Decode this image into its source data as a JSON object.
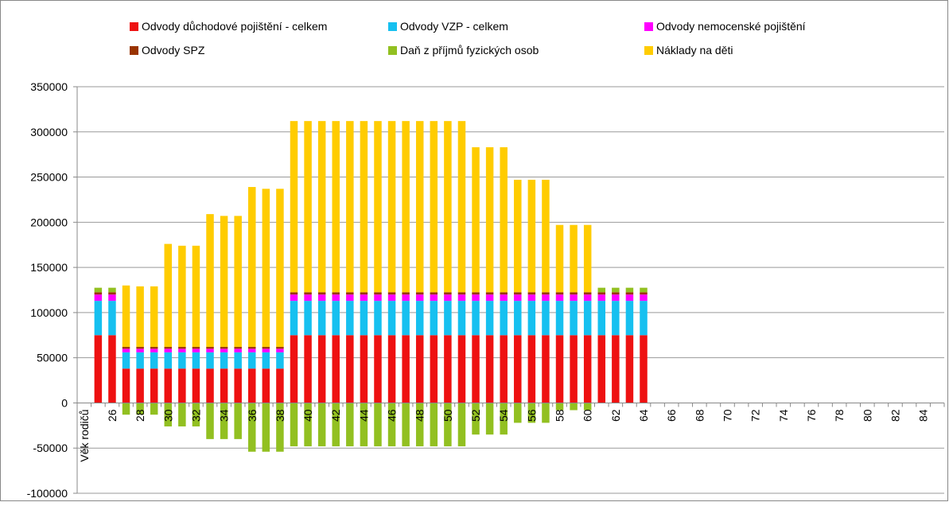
{
  "chart_data": {
    "type": "stacked_bar",
    "categories": [
      "Věk rodičů",
      null,
      "26",
      null,
      "28",
      null,
      "30",
      null,
      "32",
      null,
      "34",
      null,
      "36",
      null,
      "38",
      null,
      "40",
      null,
      "42",
      null,
      "44",
      null,
      "46",
      null,
      "48",
      null,
      "50",
      null,
      "52",
      null,
      "54",
      null,
      "56",
      null,
      "58",
      null,
      "60",
      null,
      "62",
      null,
      "64",
      null,
      "66",
      null,
      "68",
      null,
      "70",
      null,
      "72",
      null,
      "74",
      null,
      "76",
      null,
      "78",
      null,
      "80",
      null,
      "82",
      null,
      "84",
      null
    ],
    "series": [
      {
        "name": "Odvody důchodové pojištění - celkem",
        "color": "#ee1111",
        "values": [
          null,
          75000,
          75000,
          38000,
          38000,
          38000,
          38000,
          38000,
          38000,
          38000,
          38000,
          38000,
          38000,
          38000,
          38000,
          75000,
          75000,
          75000,
          75000,
          75000,
          75000,
          75000,
          75000,
          75000,
          75000,
          75000,
          75000,
          75000,
          75000,
          75000,
          75000,
          75000,
          75000,
          75000,
          75000,
          75000,
          75000,
          75000,
          75000,
          75000,
          75000,
          null,
          null,
          null,
          null,
          null,
          null,
          null,
          null,
          null,
          null,
          null,
          null,
          null,
          null,
          null,
          null,
          null,
          null,
          null,
          null,
          null
        ]
      },
      {
        "name": "Odvody VZP - celkem",
        "color": "#16c0f0",
        "values": [
          null,
          38000,
          38000,
          18000,
          18000,
          18000,
          18000,
          18000,
          18000,
          18000,
          18000,
          18000,
          18000,
          18000,
          18000,
          38000,
          38000,
          38000,
          38000,
          38000,
          38000,
          38000,
          38000,
          38000,
          38000,
          38000,
          38000,
          38000,
          38000,
          38000,
          38000,
          38000,
          38000,
          38000,
          38000,
          38000,
          38000,
          38000,
          38000,
          38000,
          38000,
          null,
          null,
          null,
          null,
          null,
          null,
          null,
          null,
          null,
          null,
          null,
          null,
          null,
          null,
          null,
          null,
          null,
          null,
          null,
          null,
          null
        ]
      },
      {
        "name": "Odvody nemocenské pojištění",
        "color": "#ff00ff",
        "values": [
          null,
          7000,
          7000,
          4000,
          4000,
          4000,
          4000,
          4000,
          4000,
          4000,
          4000,
          4000,
          4000,
          4000,
          4000,
          7000,
          7000,
          7000,
          7000,
          7000,
          7000,
          7000,
          7000,
          7000,
          7000,
          7000,
          7000,
          7000,
          7000,
          7000,
          7000,
          7000,
          7000,
          7000,
          7000,
          7000,
          7000,
          7000,
          7000,
          7000,
          7000,
          null,
          null,
          null,
          null,
          null,
          null,
          null,
          null,
          null,
          null,
          null,
          null,
          null,
          null,
          null,
          null,
          null,
          null,
          null,
          null,
          null
        ]
      },
      {
        "name": "Odvody SPZ",
        "color": "#993300",
        "values": [
          null,
          2500,
          2500,
          2000,
          2000,
          2000,
          2000,
          2000,
          2000,
          2000,
          2000,
          2000,
          2000,
          2000,
          2000,
          2500,
          2500,
          2500,
          2500,
          2500,
          2500,
          2500,
          2500,
          2500,
          2500,
          2500,
          2500,
          2500,
          2500,
          2500,
          2500,
          2500,
          2500,
          2500,
          2500,
          2500,
          2500,
          2500,
          2500,
          2500,
          2500,
          null,
          null,
          null,
          null,
          null,
          null,
          null,
          null,
          null,
          null,
          null,
          null,
          null,
          null,
          null,
          null,
          null,
          null,
          null,
          null,
          null
        ]
      },
      {
        "name": "Daň z příjmů fyzických osob",
        "color": "#92c021",
        "values": [
          null,
          5000,
          5000,
          -13000,
          -13000,
          -13000,
          -26000,
          -26000,
          -26000,
          -40000,
          -40000,
          -40000,
          -54000,
          -54000,
          -54000,
          -48000,
          -48000,
          -48000,
          -48000,
          -48000,
          -48000,
          -48000,
          -48000,
          -48000,
          -48000,
          -48000,
          -48000,
          -48000,
          -35000,
          -35000,
          -35000,
          -22000,
          -22000,
          -22000,
          -8000,
          -8000,
          -8000,
          5000,
          5000,
          5000,
          5000,
          null,
          null,
          null,
          null,
          null,
          null,
          null,
          null,
          null,
          null,
          null,
          null,
          null,
          null,
          null,
          null,
          null,
          null,
          null,
          null,
          null
        ]
      },
      {
        "name": "Náklady na děti",
        "color": "#ffcc00",
        "values": [
          null,
          0,
          0,
          68000,
          67000,
          67000,
          114000,
          112000,
          112000,
          147000,
          145000,
          145000,
          177000,
          175000,
          175000,
          189500,
          189500,
          189500,
          189500,
          189500,
          189500,
          189500,
          189500,
          189500,
          189500,
          189500,
          189500,
          189500,
          160500,
          160500,
          160500,
          124500,
          124500,
          124500,
          74500,
          74500,
          74500,
          0,
          0,
          0,
          0,
          null,
          null,
          null,
          null,
          null,
          null,
          null,
          null,
          null,
          null,
          null,
          null,
          null,
          null,
          null,
          null,
          null,
          null,
          null,
          null,
          null
        ]
      }
    ],
    "ylim": [
      -100000,
      350000
    ],
    "yticks": [
      -100000,
      -50000,
      0,
      50000,
      100000,
      150000,
      200000,
      250000,
      300000,
      350000
    ],
    "grid": true,
    "legend": "top"
  }
}
